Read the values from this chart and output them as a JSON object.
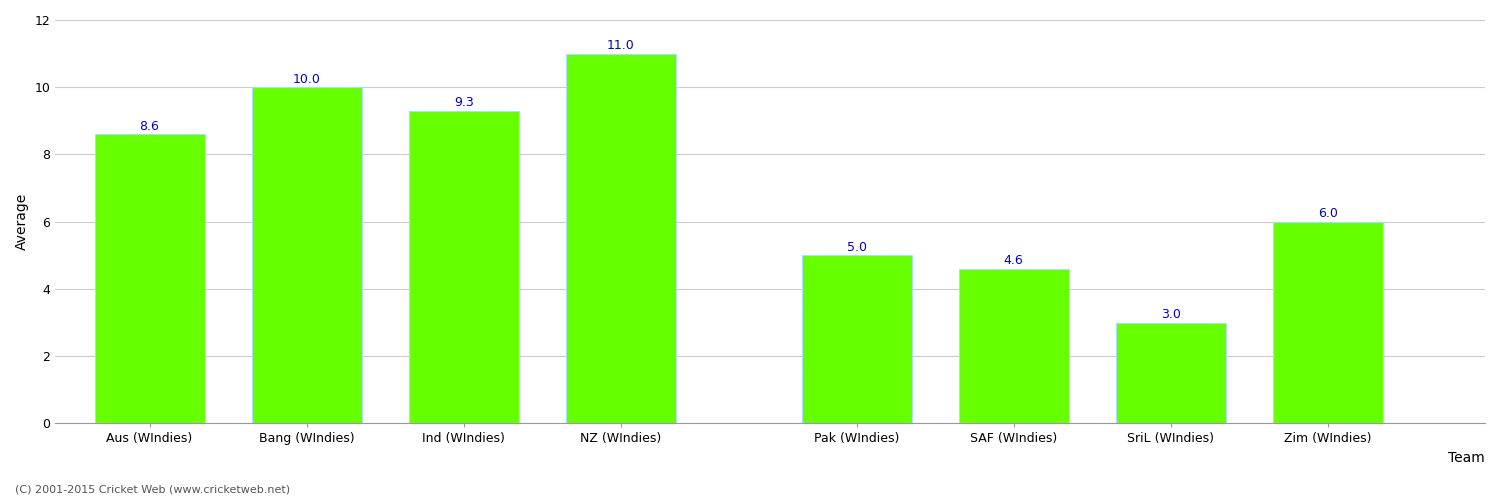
{
  "categories": [
    "Aus (WIndies)",
    "Bang (WIndies)",
    "Ind (WIndies)",
    "NZ (WIndies)",
    "Pak (WIndies)",
    "SAF (WIndies)",
    "SriL (WIndies)",
    "Zim (WIndies)"
  ],
  "values": [
    8.6,
    10.0,
    9.3,
    11.0,
    5.0,
    4.6,
    3.0,
    6.0
  ],
  "bar_color": "#66ff00",
  "bar_edge_color": "#aaddff",
  "label_color": "#0000cc",
  "xlabel": "Team",
  "ylabel": "Average",
  "ylim": [
    0,
    12
  ],
  "yticks": [
    0,
    2,
    4,
    6,
    8,
    10,
    12
  ],
  "grid_color": "#cccccc",
  "bg_color": "#ffffff",
  "label_fontsize": 9,
  "axis_fontsize": 10,
  "tick_fontsize": 9,
  "footer_text": "(C) 2001-2015 Cricket Web (www.cricketweb.net)",
  "bar_width": 0.7,
  "x_positions": [
    0,
    1,
    2,
    3,
    4.5,
    5.5,
    6.5,
    7.5
  ]
}
